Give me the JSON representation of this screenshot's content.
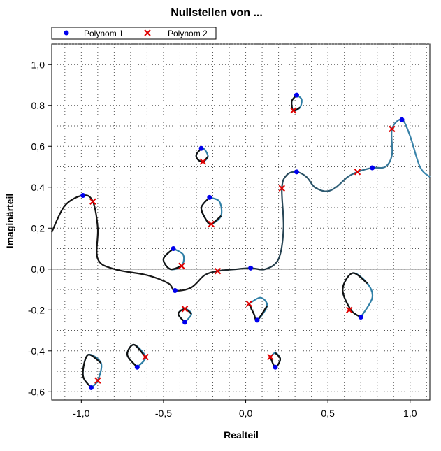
{
  "chart_data": {
    "type": "scatter",
    "title": "Nullstellen von ...",
    "xlabel": "Realteil",
    "ylabel": "Imaginärteil",
    "xlim": [
      -1.18,
      1.12
    ],
    "ylim": [
      -0.64,
      1.1
    ],
    "xticks": [
      -1.0,
      -0.5,
      0.0,
      0.5,
      1.0
    ],
    "xtick_labels": [
      "-1,0",
      "-0,5",
      "0,0",
      "0,5",
      "1,0"
    ],
    "yticks": [
      -0.6,
      -0.4,
      -0.2,
      0.0,
      0.2,
      0.4,
      0.6,
      0.8,
      1.0
    ],
    "ytick_labels": [
      "-0,6",
      "-0,4",
      "-0,2",
      "0,0",
      "0,2",
      "0,4",
      "0,6",
      "0,8",
      "1,0"
    ],
    "grid": true,
    "legend_position": "top-left",
    "series": [
      {
        "name": "Polynom 1",
        "marker": "circle",
        "color": "#0000ee",
        "points": [
          [
            -0.99,
            0.36
          ],
          [
            -0.27,
            0.59
          ],
          [
            0.31,
            0.85
          ],
          [
            -0.22,
            0.35
          ],
          [
            -0.44,
            0.1
          ],
          [
            -0.43,
            -0.105
          ],
          [
            0.03,
            0.005
          ],
          [
            0.31,
            0.475
          ],
          [
            0.77,
            0.495
          ],
          [
            0.95,
            0.73
          ],
          [
            -0.37,
            -0.26
          ],
          [
            0.07,
            -0.25
          ],
          [
            0.7,
            -0.235
          ],
          [
            0.18,
            -0.48
          ],
          [
            -0.66,
            -0.48
          ],
          [
            -0.94,
            -0.58
          ]
        ]
      },
      {
        "name": "Polynom 2",
        "marker": "cross",
        "color": "#e00000",
        "points": [
          [
            -0.93,
            0.33
          ],
          [
            -0.26,
            0.525
          ],
          [
            0.29,
            0.775
          ],
          [
            -0.21,
            0.22
          ],
          [
            -0.39,
            0.015
          ],
          [
            -0.17,
            -0.01
          ],
          [
            0.02,
            -0.17
          ],
          [
            0.22,
            0.395
          ],
          [
            0.68,
            0.475
          ],
          [
            0.89,
            0.685
          ],
          [
            -0.37,
            -0.195
          ],
          [
            0.63,
            -0.2
          ],
          [
            0.15,
            -0.43
          ],
          [
            -0.61,
            -0.43
          ],
          [
            -0.9,
            -0.545
          ]
        ]
      }
    ],
    "paths": [
      {
        "name": "main-root-path",
        "points": [
          [
            -1.18,
            0.18
          ],
          [
            -1.1,
            0.31
          ],
          [
            -0.99,
            0.36
          ],
          [
            -0.93,
            0.33
          ],
          [
            -0.9,
            0.2
          ],
          [
            -0.9,
            0.05
          ],
          [
            -0.8,
            0.0
          ],
          [
            -0.6,
            -0.03
          ],
          [
            -0.47,
            -0.07
          ],
          [
            -0.43,
            -0.105
          ],
          [
            -0.33,
            -0.09
          ],
          [
            -0.25,
            -0.03
          ],
          [
            -0.17,
            -0.01
          ],
          [
            -0.05,
            0.0
          ],
          [
            0.03,
            0.005
          ],
          [
            0.12,
            0.0
          ],
          [
            0.2,
            0.05
          ],
          [
            0.23,
            0.2
          ],
          [
            0.22,
            0.395
          ],
          [
            0.25,
            0.46
          ],
          [
            0.31,
            0.475
          ],
          [
            0.37,
            0.45
          ],
          [
            0.42,
            0.4
          ],
          [
            0.49,
            0.38
          ],
          [
            0.55,
            0.4
          ],
          [
            0.62,
            0.45
          ],
          [
            0.68,
            0.475
          ],
          [
            0.77,
            0.495
          ],
          [
            0.85,
            0.5
          ],
          [
            0.89,
            0.56
          ],
          [
            0.89,
            0.685
          ],
          [
            0.95,
            0.73
          ],
          [
            1.0,
            0.65
          ],
          [
            1.06,
            0.5
          ],
          [
            1.12,
            0.45
          ]
        ]
      },
      {
        "name": "loop-upper-small",
        "points": [
          [
            -0.27,
            0.59
          ],
          [
            -0.3,
            0.56
          ],
          [
            -0.29,
            0.535
          ],
          [
            -0.26,
            0.525
          ],
          [
            -0.23,
            0.55
          ],
          [
            -0.25,
            0.585
          ],
          [
            -0.27,
            0.59
          ]
        ]
      },
      {
        "name": "loop-top",
        "points": [
          [
            0.31,
            0.85
          ],
          [
            0.28,
            0.82
          ],
          [
            0.29,
            0.775
          ],
          [
            0.33,
            0.79
          ],
          [
            0.34,
            0.83
          ],
          [
            0.31,
            0.85
          ]
        ]
      },
      {
        "name": "loop-center-upper",
        "points": [
          [
            -0.22,
            0.35
          ],
          [
            -0.27,
            0.3
          ],
          [
            -0.24,
            0.24
          ],
          [
            -0.21,
            0.22
          ],
          [
            -0.15,
            0.26
          ],
          [
            -0.16,
            0.33
          ],
          [
            -0.22,
            0.35
          ]
        ]
      },
      {
        "name": "loop-left-center",
        "points": [
          [
            -0.44,
            0.1
          ],
          [
            -0.5,
            0.05
          ],
          [
            -0.46,
            0.0
          ],
          [
            -0.39,
            0.015
          ],
          [
            -0.38,
            0.07
          ],
          [
            -0.44,
            0.1
          ]
        ]
      },
      {
        "name": "loop-center-lower",
        "points": [
          [
            -0.37,
            -0.26
          ],
          [
            -0.41,
            -0.22
          ],
          [
            -0.37,
            -0.195
          ],
          [
            -0.33,
            -0.22
          ],
          [
            -0.37,
            -0.26
          ]
        ]
      },
      {
        "name": "loop-right-center",
        "points": [
          [
            0.02,
            -0.17
          ],
          [
            0.05,
            -0.22
          ],
          [
            0.07,
            -0.25
          ],
          [
            0.13,
            -0.18
          ],
          [
            0.09,
            -0.14
          ],
          [
            0.02,
            -0.17
          ]
        ]
      },
      {
        "name": "loop-right-large",
        "points": [
          [
            0.7,
            -0.235
          ],
          [
            0.64,
            -0.2
          ],
          [
            0.59,
            -0.1
          ],
          [
            0.65,
            -0.02
          ],
          [
            0.74,
            -0.07
          ],
          [
            0.77,
            -0.14
          ],
          [
            0.7,
            -0.235
          ]
        ]
      },
      {
        "name": "loop-lower-small",
        "points": [
          [
            0.15,
            -0.43
          ],
          [
            0.18,
            -0.48
          ],
          [
            0.21,
            -0.44
          ],
          [
            0.18,
            -0.41
          ],
          [
            0.15,
            -0.43
          ]
        ]
      },
      {
        "name": "loop-lower-left",
        "points": [
          [
            -0.66,
            -0.48
          ],
          [
            -0.72,
            -0.42
          ],
          [
            -0.68,
            -0.37
          ],
          [
            -0.61,
            -0.43
          ],
          [
            -0.66,
            -0.48
          ]
        ]
      },
      {
        "name": "loop-bottom-left",
        "points": [
          [
            -0.94,
            -0.58
          ],
          [
            -0.99,
            -0.52
          ],
          [
            -0.96,
            -0.42
          ],
          [
            -0.88,
            -0.46
          ],
          [
            -0.9,
            -0.545
          ],
          [
            -0.94,
            -0.58
          ]
        ]
      }
    ]
  }
}
